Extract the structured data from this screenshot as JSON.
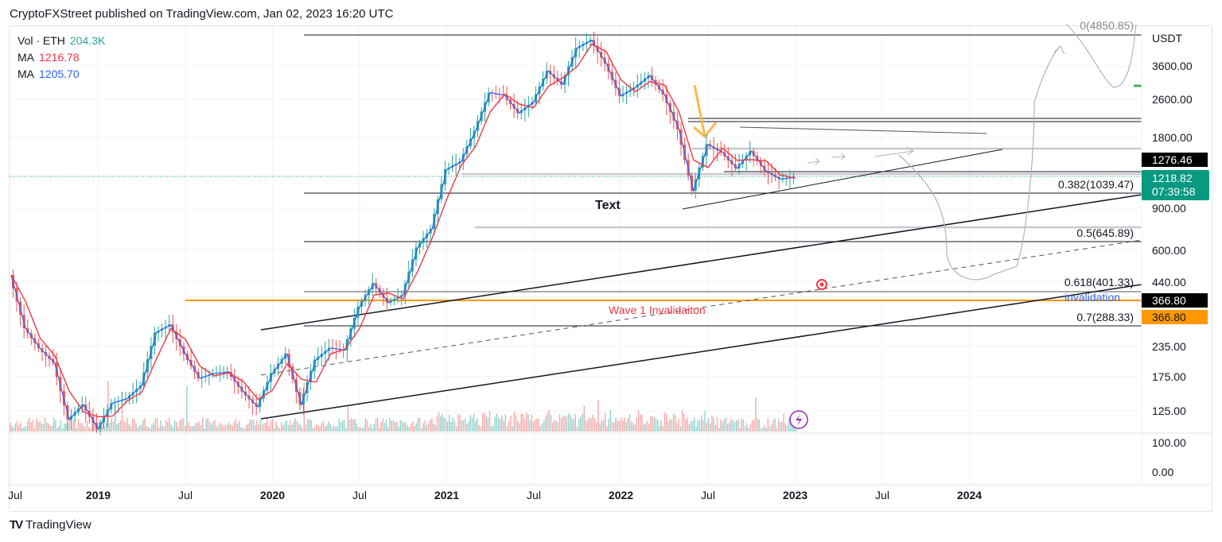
{
  "header": {
    "published": "CryptoFXStreet published on TradingView.com, Jan 02, 2023 16:20 UTC"
  },
  "legend": [
    {
      "label": "Vol · ETH",
      "value": "204.3K",
      "color": "#26a69a"
    },
    {
      "label": "MA",
      "value": "1216.78",
      "color": "#f23645"
    },
    {
      "label": "MA",
      "value": "1205.70",
      "color": "#2962ff"
    }
  ],
  "price_axis": {
    "currency": "USDT",
    "ticks": [
      "3600.00",
      "2600.00",
      "1800.00",
      "900.00",
      "600.00",
      "440.00",
      "235.00",
      "175.00",
      "125.00"
    ],
    "volume_ticks": [
      "100.00",
      "0.00"
    ],
    "tags": [
      {
        "text": "1276.46",
        "bg": "#000000",
        "fg": "#ffffff"
      },
      {
        "text": "1218.82",
        "sub": "07:39:58",
        "bg": "#089981",
        "fg": "#ffffff"
      },
      {
        "text": "366.80",
        "bg": "#000000",
        "fg": "#ffffff"
      },
      {
        "text": "366.80",
        "bg": "#ff9800",
        "fg": "#131722"
      }
    ]
  },
  "time_axis": [
    {
      "label": "Jul",
      "major": false
    },
    {
      "label": "2019",
      "major": true
    },
    {
      "label": "Jul",
      "major": false
    },
    {
      "label": "2020",
      "major": true
    },
    {
      "label": "Jul",
      "major": false
    },
    {
      "label": "2021",
      "major": true
    },
    {
      "label": "Jul",
      "major": false
    },
    {
      "label": "2022",
      "major": true
    },
    {
      "label": "Jul",
      "major": false
    },
    {
      "label": "2023",
      "major": true
    },
    {
      "label": "Jul",
      "major": false
    },
    {
      "label": "2024",
      "major": true
    }
  ],
  "annotations": {
    "fib_levels": [
      "0(4850.85)",
      "0.382(1039.47)",
      "0.5(645.89)",
      "0.618(401.33)",
      "0.7(288.33)"
    ],
    "text_label": "Text",
    "wave_label": "Wave 1 Invalidaiton",
    "invalidation_label": "invalidation",
    "wave_color": "#f23645",
    "orange_line_color": "#ff9800"
  },
  "chart_data": {
    "type": "candlestick",
    "symbol": "ETH / USDT",
    "scale": "log",
    "ylim": [
      90,
      5200
    ],
    "x": [
      "2018-07",
      "2018-08",
      "2018-09",
      "2018-10",
      "2018-11",
      "2018-12",
      "2019-01",
      "2019-02",
      "2019-03",
      "2019-04",
      "2019-05",
      "2019-06",
      "2019-07",
      "2019-08",
      "2019-09",
      "2019-10",
      "2019-11",
      "2019-12",
      "2020-01",
      "2020-02",
      "2020-03",
      "2020-04",
      "2020-05",
      "2020-06",
      "2020-07",
      "2020-08",
      "2020-09",
      "2020-10",
      "2020-11",
      "2020-12",
      "2021-01",
      "2021-02",
      "2021-03",
      "2021-04",
      "2021-05",
      "2021-06",
      "2021-07",
      "2021-08",
      "2021-09",
      "2021-10",
      "2021-11",
      "2021-12",
      "2022-01",
      "2022-02",
      "2022-03",
      "2022-04",
      "2022-05",
      "2022-06",
      "2022-07",
      "2022-08",
      "2022-09",
      "2022-10",
      "2022-11",
      "2022-12",
      "2023-01"
    ],
    "close": [
      470,
      280,
      230,
      200,
      115,
      133,
      105,
      135,
      141,
      160,
      268,
      290,
      218,
      172,
      180,
      183,
      151,
      130,
      180,
      218,
      133,
      206,
      231,
      226,
      345,
      433,
      359,
      386,
      614,
      737,
      1314,
      1416,
      1918,
      2773,
      2707,
      2275,
      2536,
      3433,
      3001,
      4288,
      4631,
      3683,
      2688,
      2919,
      3281,
      2727,
      1942,
      1067,
      1679,
      1553,
      1328,
      1572,
      1295,
      1196,
      1218
    ],
    "series": [
      {
        "name": "MA",
        "value": 1216.78,
        "color": "#f23645"
      },
      {
        "name": "MA",
        "value": 1205.7,
        "color": "#2962ff"
      }
    ],
    "grid": true
  },
  "footer": {
    "brand": "TradingView"
  }
}
